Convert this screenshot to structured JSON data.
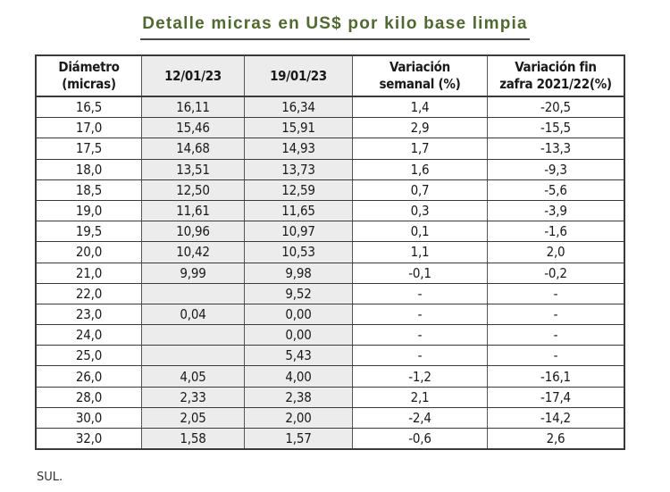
{
  "title": "Detalle micras en US$ por kilo base limpia",
  "colors": {
    "title": "#4f6a2c",
    "shaded_column_bg": "#ececec",
    "border": "#3a3a3a"
  },
  "table": {
    "headers": [
      {
        "line1": "Diámetro",
        "line2": "(micras)"
      },
      {
        "line1": "12/01/23",
        "line2": ""
      },
      {
        "line1": "19/01/23",
        "line2": ""
      },
      {
        "line1": "Variación",
        "line2": "semanal (%)"
      },
      {
        "line1": "Variación fin",
        "line2": "zafra 2021/22(%)"
      }
    ],
    "rows": [
      [
        "16,5",
        "16,11",
        "16,34",
        "1,4",
        "-20,5"
      ],
      [
        "17,0",
        "15,46",
        "15,91",
        "2,9",
        "-15,5"
      ],
      [
        "17,5",
        "14,68",
        "14,93",
        "1,7",
        "-13,3"
      ],
      [
        "18,0",
        "13,51",
        "13,73",
        "1,6",
        "-9,3"
      ],
      [
        "18,5",
        "12,50",
        "12,59",
        "0,7",
        "-5,6"
      ],
      [
        "19,0",
        "11,61",
        "11,65",
        "0,3",
        "-3,9"
      ],
      [
        "19,5",
        "10,96",
        "10,97",
        "0,1",
        "-1,6"
      ],
      [
        "20,0",
        "10,42",
        "10,53",
        "1,1",
        "2,0"
      ],
      [
        "21,0",
        "9,99",
        "9,98",
        "-0,1",
        "-0,2"
      ],
      [
        "22,0",
        "",
        "9,52",
        "-",
        "-"
      ],
      [
        "23,0",
        "0,04",
        "0,00",
        "-",
        "-"
      ],
      [
        "24,0",
        "",
        "0,00",
        "-",
        "-"
      ],
      [
        "25,0",
        "",
        "5,43",
        "-",
        "-"
      ],
      [
        "26,0",
        "4,05",
        "4,00",
        "-1,2",
        "-16,1"
      ],
      [
        "28,0",
        "2,33",
        "2,38",
        "2,1",
        "-17,4"
      ],
      [
        "30,0",
        "2,05",
        "2,00",
        "-2,4",
        "-14,2"
      ],
      [
        "32,0",
        "1,58",
        "1,57",
        "-0,6",
        "2,6"
      ]
    ]
  },
  "footer": {
    "source": "SUL."
  }
}
